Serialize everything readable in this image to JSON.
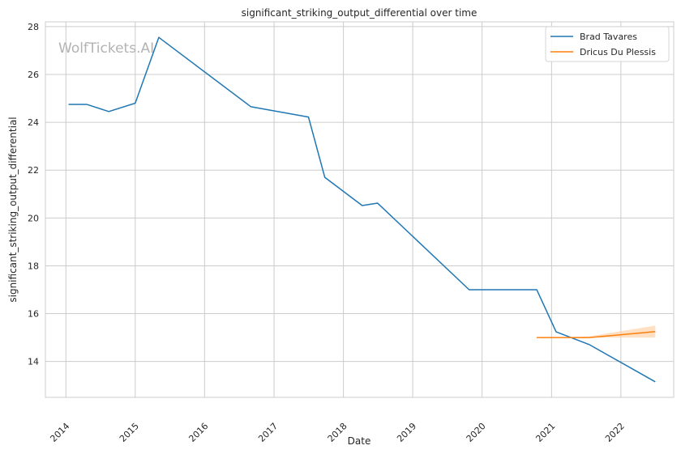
{
  "chart_data": {
    "type": "line",
    "title": "significant_striking_output_differential over time",
    "xlabel": "Date",
    "ylabel": "significant_striking_output_differential",
    "watermark": "WolfTickets.AI",
    "x_ticks": [
      "2014",
      "2015",
      "2016",
      "2017",
      "2018",
      "2019",
      "2020",
      "2021",
      "2022"
    ],
    "y_ticks": [
      "14",
      "16",
      "18",
      "20",
      "22",
      "24",
      "26",
      "28"
    ],
    "xlim": [
      "2013-09-15",
      "2022-10-06"
    ],
    "ylim": [
      12.5,
      28.2
    ],
    "grid": true,
    "legend_position": "top-right",
    "series": [
      {
        "name": "Brad Tavares",
        "color": "#1f77b4",
        "x": [
          "2014-01-15",
          "2014-04-20",
          "2014-08-15",
          "2015-01-01",
          "2015-05-05",
          "2016-09-01",
          "2017-07-01",
          "2017-09-25",
          "2018-04-10",
          "2018-06-30",
          "2019-10-25",
          "2020-10-15",
          "2021-01-25",
          "2021-07-20",
          "2022-07-01"
        ],
        "y": [
          24.75,
          24.75,
          24.45,
          24.8,
          27.55,
          24.65,
          24.22,
          21.7,
          20.52,
          20.62,
          17.0,
          17.0,
          15.24,
          14.7,
          13.15
        ]
      },
      {
        "name": "Dricus Du Plessis",
        "color": "#ff7f0e",
        "x": [
          "2020-10-15",
          "2021-01-25",
          "2021-07-20",
          "2022-07-01"
        ],
        "y": [
          15.0,
          15.0,
          15.0,
          15.25
        ],
        "ci_low": [
          15.0,
          15.0,
          15.0,
          15.0
        ],
        "ci_high": [
          15.0,
          15.0,
          15.05,
          15.5
        ],
        "band_color": "#ffcc99"
      }
    ]
  }
}
